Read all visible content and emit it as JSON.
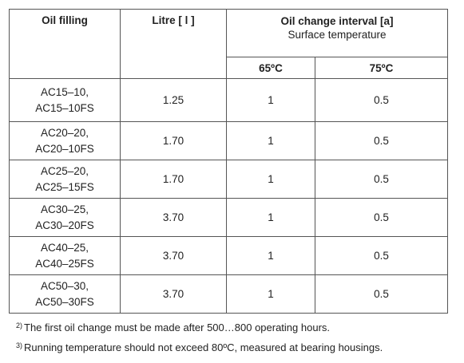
{
  "table": {
    "headers": {
      "oil_filling": "Oil filling",
      "litre": "Litre [ l ]",
      "interval": "Oil change interval [a]",
      "interval_sub": "Surface temperature",
      "temp_1": "65ºC",
      "temp_2": "75ºC"
    },
    "rows": [
      {
        "model_1": "AC15–10,",
        "model_2": "AC15–10FS",
        "litre": "1.25",
        "t65": "1",
        "t75": "0.5"
      },
      {
        "model_1": "AC20–20,",
        "model_2": "AC20–10FS",
        "litre": "1.70",
        "t65": "1",
        "t75": "0.5"
      },
      {
        "model_1": "AC25–20,",
        "model_2": "AC25–15FS",
        "litre": "1.70",
        "t65": "1",
        "t75": "0.5"
      },
      {
        "model_1": "AC30–25,",
        "model_2": "AC30–20FS",
        "litre": "3.70",
        "t65": "1",
        "t75": "0.5"
      },
      {
        "model_1": "AC40–25,",
        "model_2": "AC40–25FS",
        "litre": "3.70",
        "t65": "1",
        "t75": "0.5"
      },
      {
        "model_1": "AC50–30,",
        "model_2": "AC50–30FS",
        "litre": "3.70",
        "t65": "1",
        "t75": "0.5"
      }
    ]
  },
  "notes": [
    {
      "mark": "2)",
      "text": "The first oil change must be made after  500…800 operating hours."
    },
    {
      "mark": "3)",
      "text": "Running temperature should not exceed 80ºC, measured at bearing housings."
    }
  ]
}
